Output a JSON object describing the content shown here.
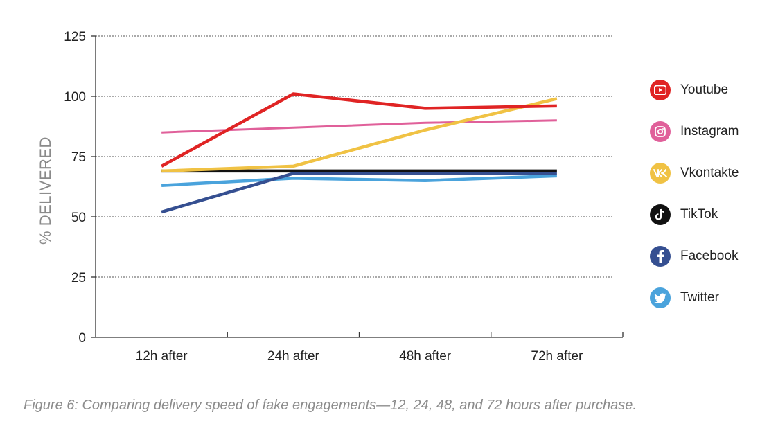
{
  "chart_data": {
    "type": "line",
    "categories": [
      "12h after",
      "24h after",
      "48h after",
      "72h after"
    ],
    "ylabel": "% DELIVERED",
    "xlabel": "",
    "ylim": [
      0,
      125
    ],
    "yticks": [
      0,
      25,
      50,
      75,
      100,
      125
    ],
    "grid": "horizontal dotted",
    "legend": "right",
    "series": [
      {
        "name": "Youtube",
        "color": "#e02424",
        "icon": "youtube-icon",
        "values": [
          71,
          101,
          95,
          96
        ]
      },
      {
        "name": "Instagram",
        "color": "#e0609a",
        "icon": "instagram-icon",
        "values": [
          85,
          87,
          89,
          90
        ]
      },
      {
        "name": "Vkontakte",
        "color": "#f0c244",
        "icon": "vkontakte-icon",
        "values": [
          69,
          71,
          86,
          99
        ]
      },
      {
        "name": "TikTok",
        "color": "#111111",
        "icon": "tiktok-icon",
        "values": [
          69,
          69,
          69,
          69
        ]
      },
      {
        "name": "Facebook",
        "color": "#354f91",
        "icon": "facebook-icon",
        "values": [
          52,
          68,
          68,
          68
        ]
      },
      {
        "name": "Twitter",
        "color": "#4aa3dc",
        "icon": "twitter-icon",
        "values": [
          63,
          66,
          65,
          67
        ]
      }
    ]
  },
  "caption": "Figure 6: Comparing delivery speed of fake engagements—12, 24, 48, and 72 hours after purchase."
}
